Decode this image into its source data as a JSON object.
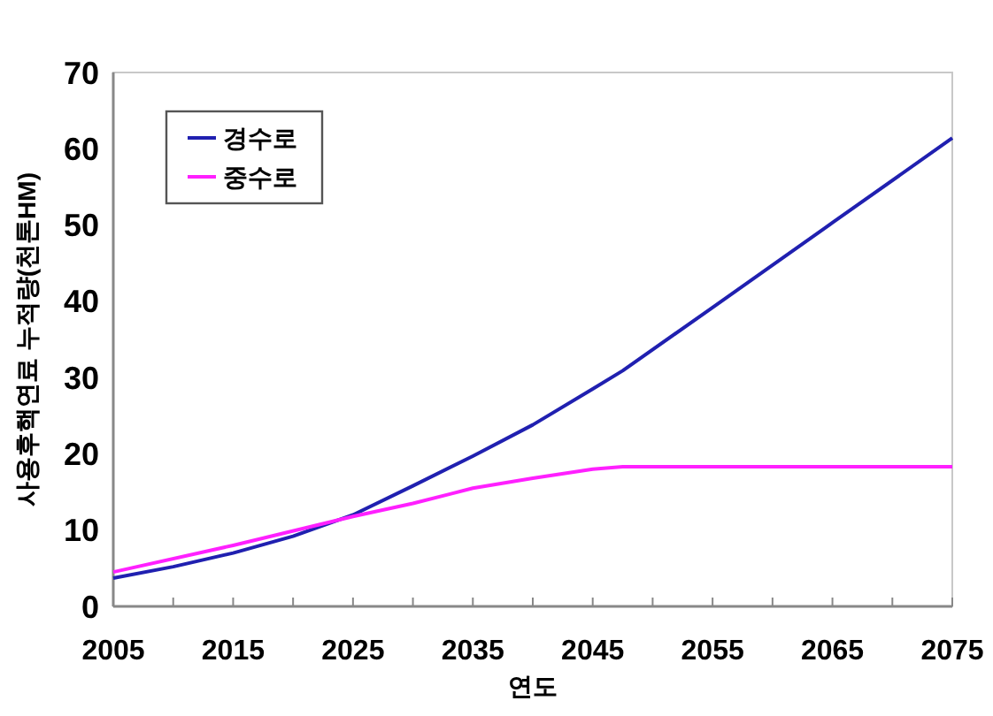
{
  "chart_data": {
    "type": "line",
    "xlabel": "연도",
    "ylabel": "사용후핵연료 누적량(천톤HM)",
    "x": [
      2005,
      2010,
      2015,
      2020,
      2025,
      2030,
      2035,
      2040,
      2045,
      2047.5,
      2055,
      2065,
      2075
    ],
    "series": [
      {
        "name": "경수로",
        "color": "#2020b0",
        "values": [
          3.7,
          5.2,
          7,
          9.2,
          12,
          15.8,
          19.7,
          23.8,
          28.5,
          30.9,
          39.2,
          50.3,
          61.4
        ]
      },
      {
        "name": "중수로",
        "color": "#ff20ff",
        "x": [
          2005,
          2015,
          2025,
          2030,
          2035,
          2040,
          2045,
          2047.5,
          2075
        ],
        "values": [
          4.5,
          8,
          11.8,
          13.5,
          15.5,
          16.8,
          18,
          18.3,
          18.3
        ]
      }
    ],
    "xlim": [
      2005,
      2075
    ],
    "ylim": [
      0,
      70
    ],
    "xticks": [
      2005,
      {
        "value": 2010,
        "label": null
      },
      2015,
      {
        "value": 2020,
        "label": null
      },
      2025,
      {
        "value": 2030,
        "label": null
      },
      2035,
      {
        "value": 2040,
        "label": null
      },
      2045,
      {
        "value": 2050,
        "label": null
      },
      2055,
      {
        "value": 2060,
        "label": null
      },
      2065,
      {
        "value": 2070,
        "label": null
      },
      2075
    ],
    "yticks": [
      0,
      10,
      20,
      30,
      40,
      50,
      60,
      70
    ],
    "grid": false,
    "legend": "top left",
    "marker": "none",
    "line_style": "solid"
  }
}
